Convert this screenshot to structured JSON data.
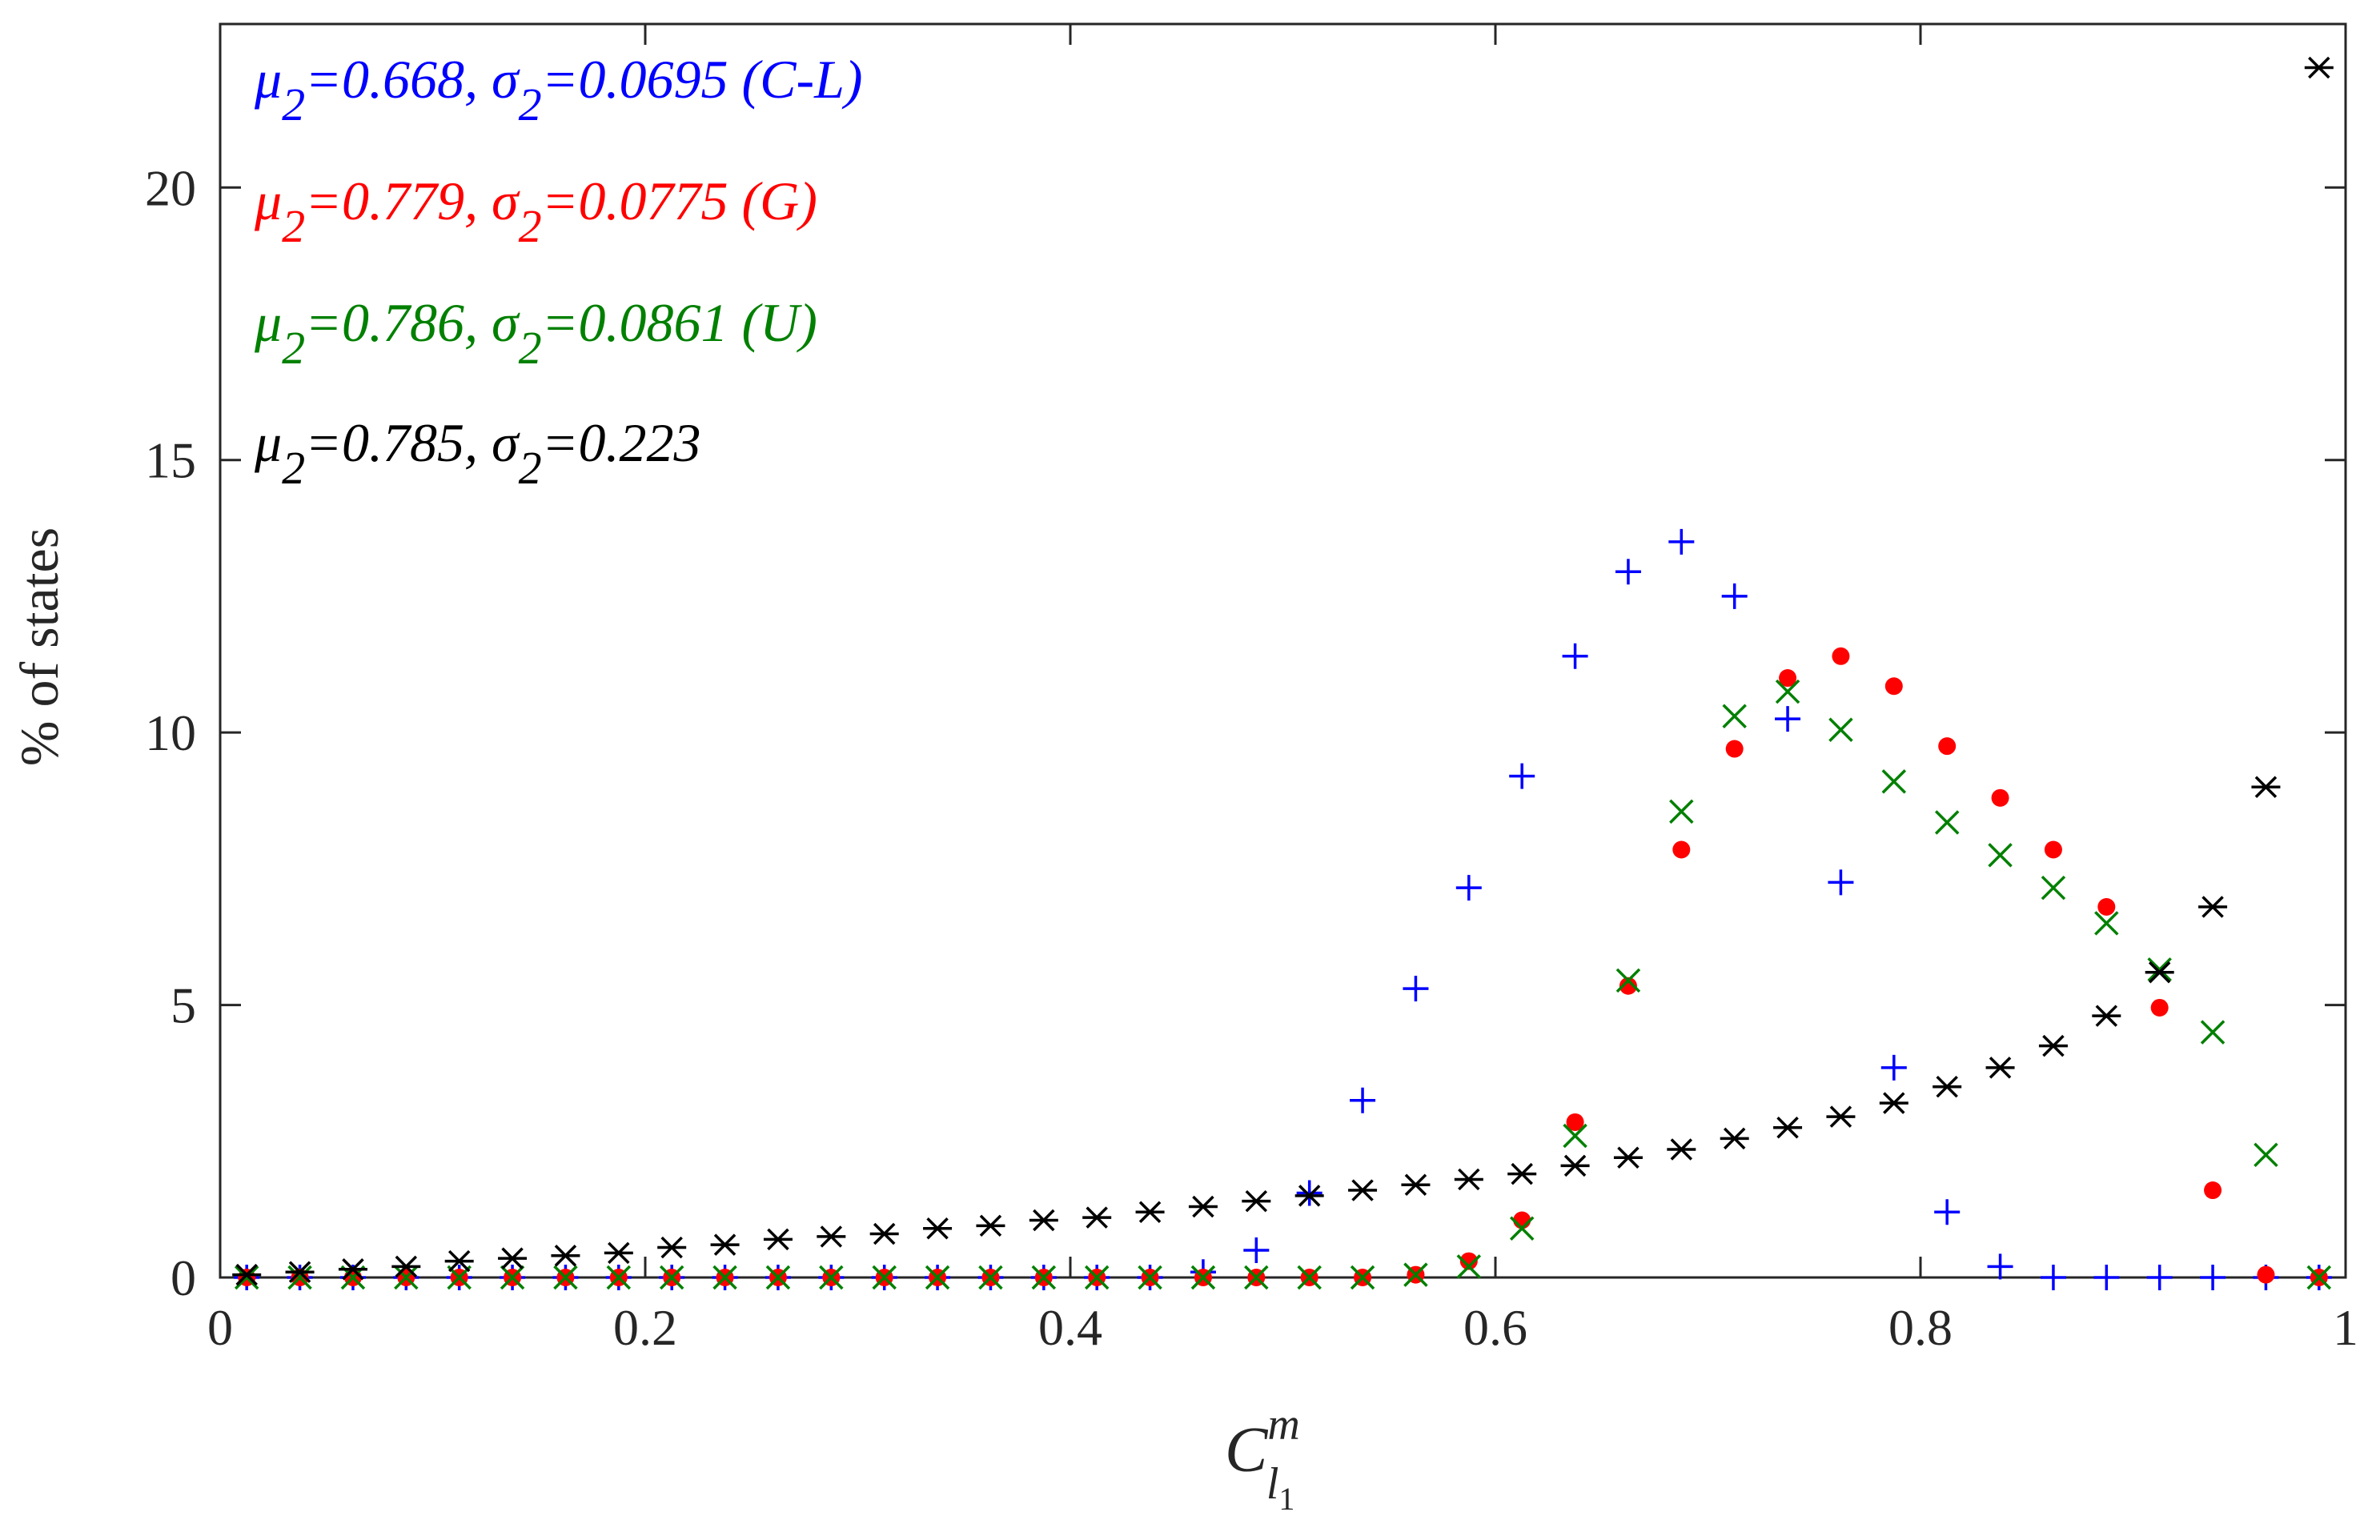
{
  "chart_data": {
    "type": "scatter",
    "title": "",
    "ylabel": "% of states",
    "xlabel": {
      "base": "C",
      "sup": "m",
      "sub": "l",
      "subsub": "1"
    },
    "xlim": [
      0,
      1
    ],
    "ylim": [
      0,
      23
    ],
    "xticks": [
      0,
      0.2,
      0.4,
      0.6,
      0.8,
      1
    ],
    "xtick_labels": [
      "0",
      "0.2",
      "0.4",
      "0.6",
      "0.8",
      "1"
    ],
    "yticks": [
      0,
      5,
      10,
      15,
      20
    ],
    "ytick_labels": [
      "0",
      "5",
      "10",
      "15",
      "20"
    ],
    "grid": false,
    "legend_position": "top-left",
    "x": [
      0.0125,
      0.0375,
      0.0625,
      0.0875,
      0.1125,
      0.1375,
      0.1625,
      0.1875,
      0.2125,
      0.2375,
      0.2625,
      0.2875,
      0.3125,
      0.3375,
      0.3625,
      0.3875,
      0.4125,
      0.4375,
      0.4625,
      0.4875,
      0.5125,
      0.5375,
      0.5625,
      0.5875,
      0.6125,
      0.6375,
      0.6625,
      0.6875,
      0.7125,
      0.7375,
      0.7625,
      0.7875,
      0.8125,
      0.8375,
      0.8625,
      0.8875,
      0.9125,
      0.9375,
      0.9625,
      0.9875
    ],
    "series": [
      {
        "marker": "plus",
        "color": "#0000ff",
        "label": {
          "mu": "0.668",
          "sigma": "0.0695",
          "tag": "(C-L)"
        },
        "values": [
          0,
          0,
          0,
          0,
          0,
          0,
          0,
          0,
          0,
          0,
          0,
          0,
          0,
          0,
          0,
          0,
          0,
          0,
          0.1,
          0.5,
          1.55,
          3.25,
          5.3,
          7.15,
          9.2,
          11.4,
          12.95,
          13.5,
          12.5,
          10.25,
          7.25,
          3.85,
          1.2,
          0.2,
          0,
          0,
          0,
          0,
          0,
          0
        ]
      },
      {
        "marker": "dot",
        "color": "#ff0000",
        "label": {
          "mu": "0.779",
          "sigma": "0.0775",
          "tag": "(G)"
        },
        "values": [
          0,
          0,
          0,
          0,
          0,
          0,
          0,
          0,
          0,
          0,
          0,
          0,
          0,
          0,
          0,
          0,
          0,
          0,
          0,
          0,
          0,
          0,
          0.05,
          0.3,
          1.05,
          2.85,
          5.35,
          7.85,
          9.7,
          11.0,
          11.4,
          10.85,
          9.75,
          8.8,
          7.85,
          6.8,
          4.95,
          1.6,
          0.05,
          0
        ]
      },
      {
        "marker": "cross",
        "color": "#008000",
        "label": {
          "mu": "0.786",
          "sigma": "0.0861",
          "tag": "(U)"
        },
        "values": [
          0,
          0,
          0,
          0,
          0,
          0,
          0,
          0,
          0,
          0,
          0,
          0,
          0,
          0,
          0,
          0,
          0,
          0,
          0,
          0,
          0,
          0,
          0.05,
          0.2,
          0.9,
          2.6,
          5.45,
          8.55,
          10.3,
          10.75,
          10.05,
          9.1,
          8.35,
          7.75,
          7.15,
          6.5,
          5.65,
          4.5,
          2.25,
          0
        ]
      },
      {
        "marker": "asterisk",
        "color": "#000000",
        "label": {
          "mu": "0.785",
          "sigma": "0.223",
          "tag": ""
        },
        "values": [
          0.05,
          0.1,
          0.15,
          0.2,
          0.3,
          0.35,
          0.4,
          0.45,
          0.55,
          0.6,
          0.7,
          0.75,
          0.8,
          0.9,
          0.95,
          1.05,
          1.1,
          1.2,
          1.3,
          1.4,
          1.5,
          1.6,
          1.7,
          1.8,
          1.9,
          2.05,
          2.2,
          2.35,
          2.55,
          2.75,
          2.95,
          3.2,
          3.5,
          3.85,
          4.25,
          4.8,
          5.6,
          6.8,
          9.0,
          22.2
        ]
      }
    ]
  }
}
